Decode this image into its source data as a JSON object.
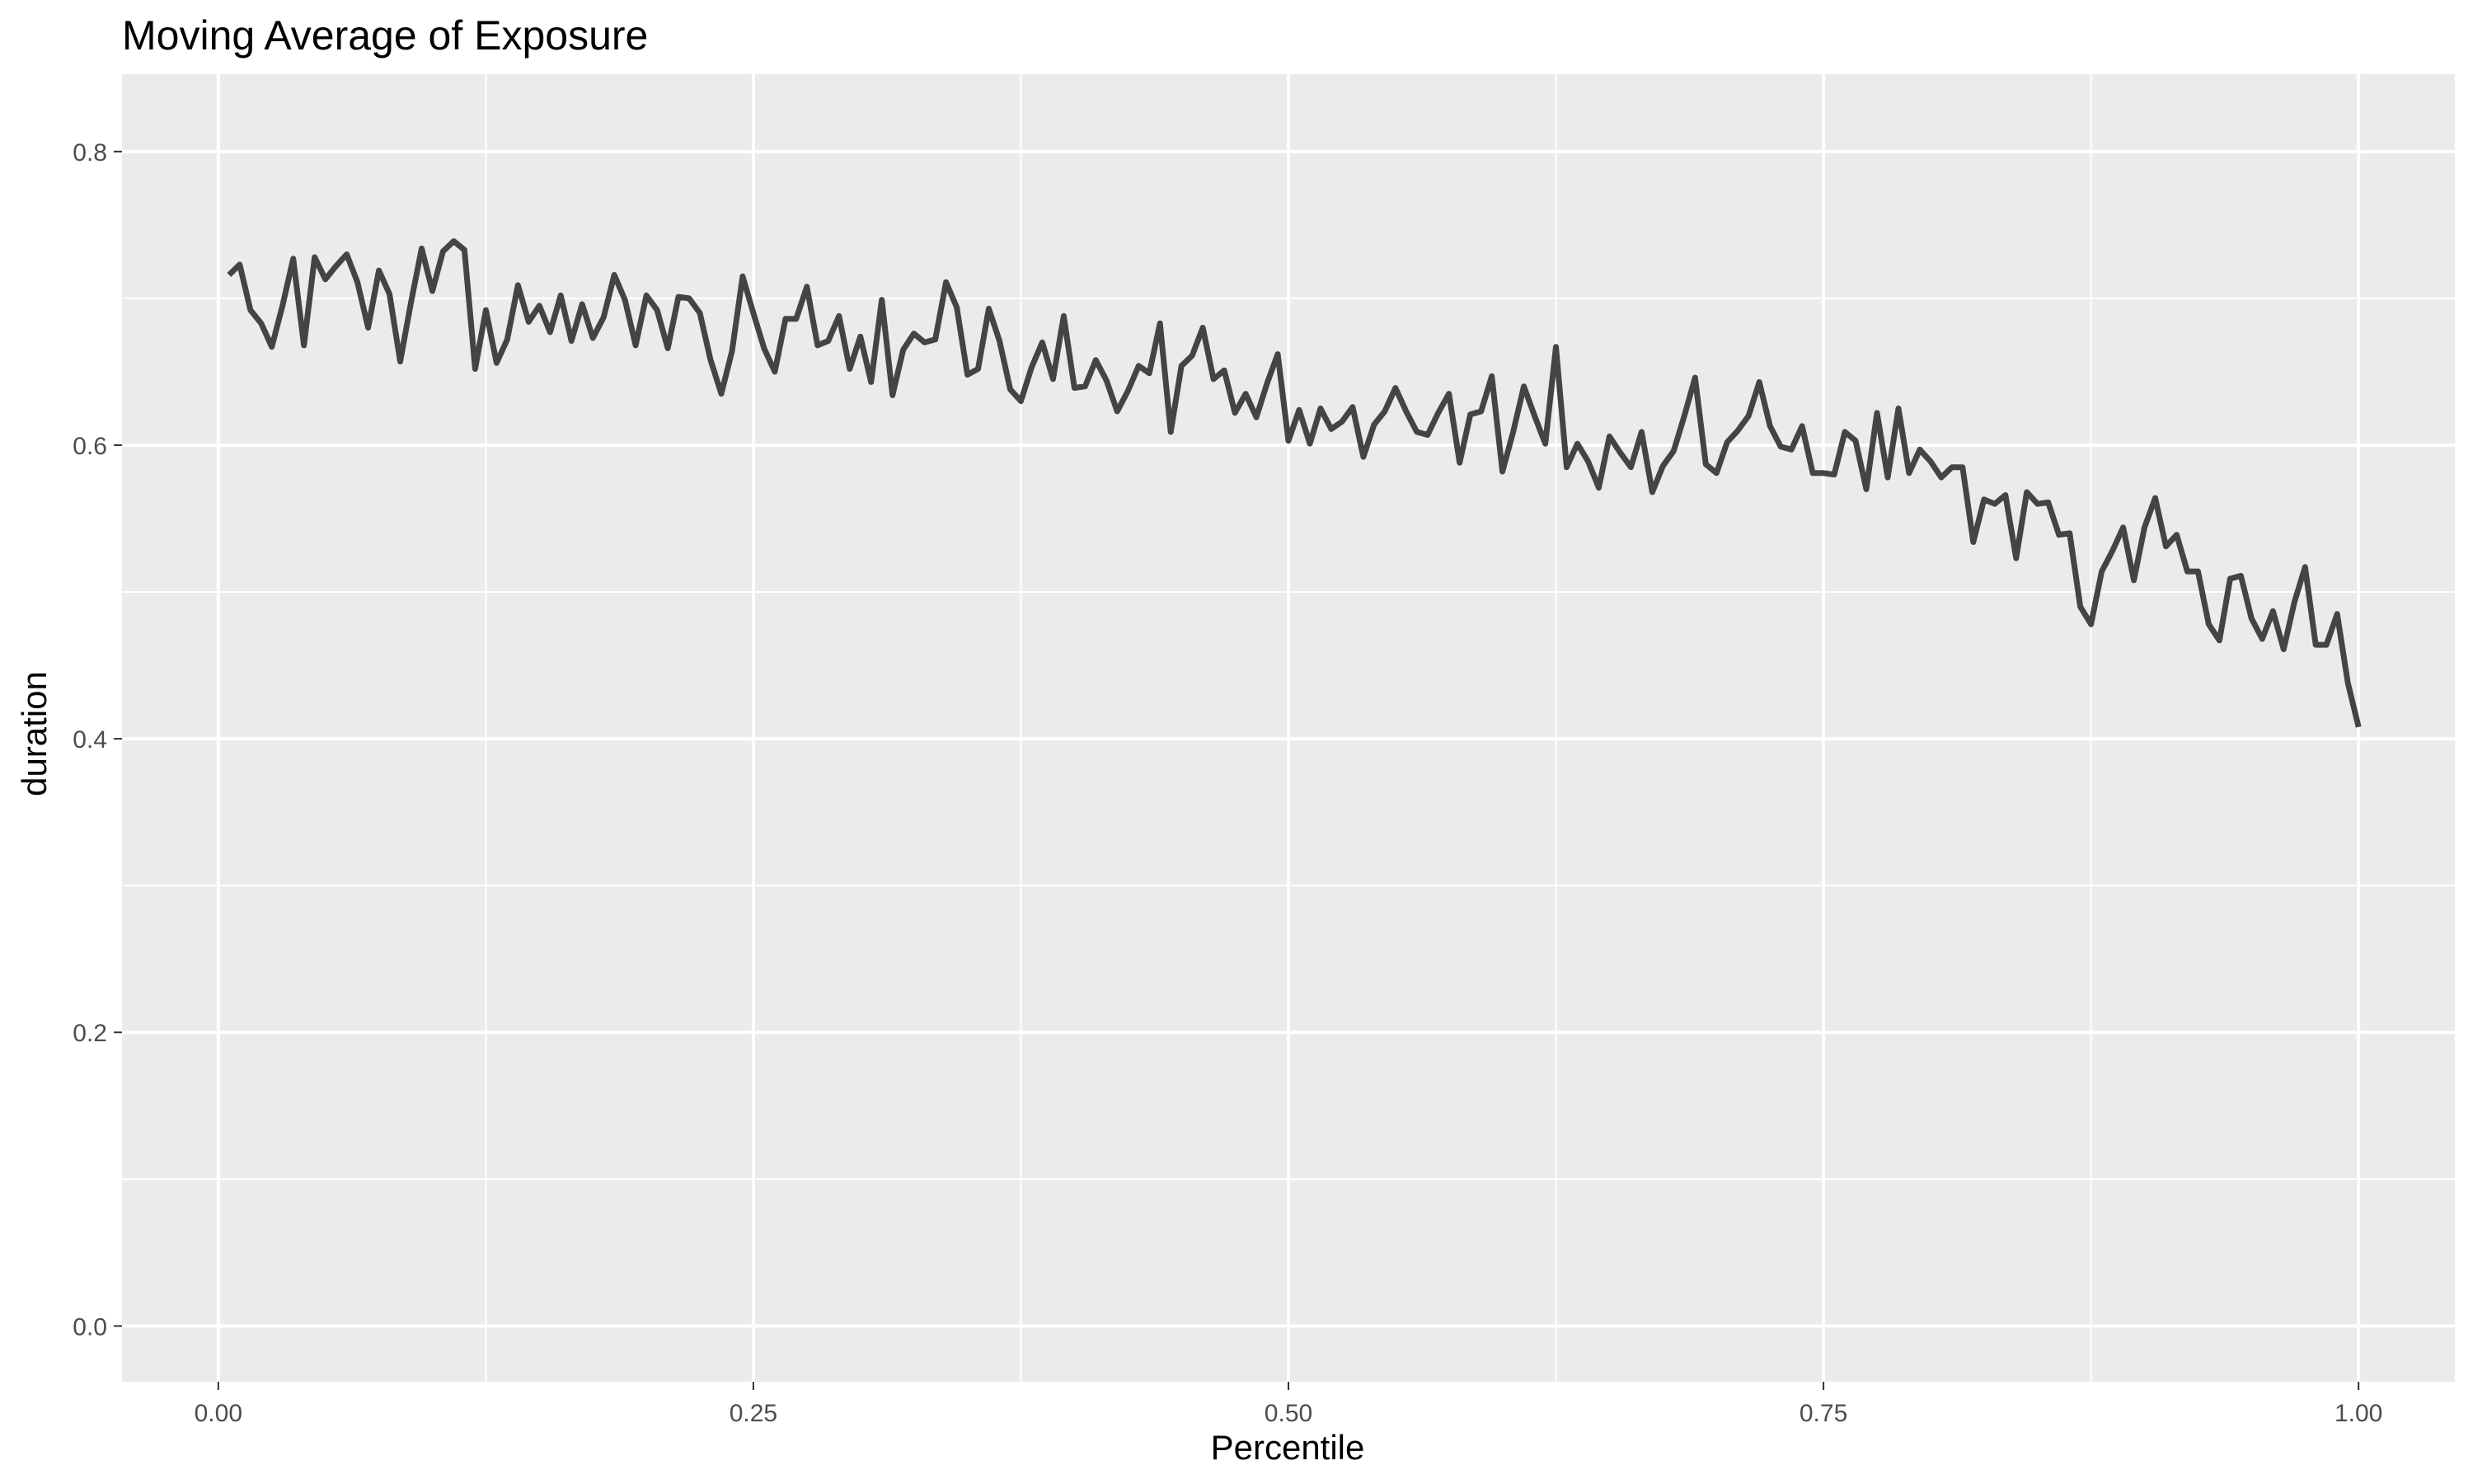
{
  "chart_data": {
    "type": "line",
    "title": "Moving Average of Exposure",
    "xlabel": "Percentile",
    "ylabel": "duration",
    "xlim": [
      -0.045,
      1.045
    ],
    "ylim": [
      -0.038,
      0.8527
    ],
    "grid": true,
    "legend": "none",
    "x_ticks": [
      {
        "value": 0.0,
        "label": "0.00"
      },
      {
        "value": 0.25,
        "label": "0.25"
      },
      {
        "value": 0.5,
        "label": "0.50"
      },
      {
        "value": 0.75,
        "label": "0.75"
      },
      {
        "value": 1.0,
        "label": "1.00"
      }
    ],
    "y_ticks": [
      {
        "value": 0.0,
        "label": "0.0"
      },
      {
        "value": 0.2,
        "label": "0.2"
      },
      {
        "value": 0.4,
        "label": "0.4"
      },
      {
        "value": 0.6,
        "label": "0.6"
      },
      {
        "value": 0.8,
        "label": "0.8"
      }
    ],
    "x_minor": [
      0.125,
      0.375,
      0.625,
      0.875
    ],
    "y_minor": [
      0.1,
      0.3,
      0.5,
      0.7
    ],
    "colors": {
      "panel": "#ebebeb",
      "grid": "#ffffff",
      "line": "#444444",
      "tick": "#333333"
    },
    "series": [
      {
        "x": [
          0.005,
          0.01,
          0.015,
          0.02,
          0.025,
          0.03,
          0.035,
          0.04,
          0.045,
          0.05,
          0.055,
          0.06,
          0.065,
          0.07,
          0.075,
          0.08,
          0.085,
          0.09,
          0.095,
          0.1,
          0.105,
          0.11,
          0.115,
          0.12,
          0.125,
          0.13,
          0.135,
          0.14,
          0.145,
          0.15,
          0.155,
          0.16,
          0.165,
          0.17,
          0.175,
          0.18,
          0.185,
          0.19,
          0.195,
          0.2,
          0.205,
          0.21,
          0.215,
          0.22,
          0.225,
          0.23,
          0.235,
          0.24,
          0.245,
          0.25,
          0.255,
          0.26,
          0.265,
          0.27,
          0.275,
          0.28,
          0.285,
          0.29,
          0.295,
          0.3,
          0.305,
          0.31,
          0.315,
          0.32,
          0.325,
          0.33,
          0.335,
          0.34,
          0.345,
          0.35,
          0.355,
          0.36,
          0.365,
          0.37,
          0.375,
          0.38,
          0.385,
          0.39,
          0.395,
          0.4,
          0.405,
          0.41,
          0.415,
          0.42,
          0.425,
          0.43,
          0.435,
          0.44,
          0.445,
          0.45,
          0.455,
          0.46,
          0.465,
          0.47,
          0.475,
          0.48,
          0.485,
          0.49,
          0.495,
          0.5,
          0.505,
          0.51,
          0.515,
          0.52,
          0.525,
          0.53,
          0.535,
          0.54,
          0.545,
          0.55,
          0.555,
          0.56,
          0.565,
          0.57,
          0.575,
          0.58,
          0.585,
          0.59,
          0.595,
          0.6,
          0.605,
          0.61,
          0.615,
          0.62,
          0.625,
          0.63,
          0.635,
          0.64,
          0.645,
          0.65,
          0.655,
          0.66,
          0.665,
          0.67,
          0.675,
          0.68,
          0.685,
          0.69,
          0.695,
          0.7,
          0.705,
          0.71,
          0.715,
          0.72,
          0.725,
          0.73,
          0.735,
          0.74,
          0.745,
          0.75,
          0.755,
          0.76,
          0.765,
          0.77,
          0.775,
          0.78,
          0.785,
          0.79,
          0.795,
          0.8,
          0.805,
          0.81,
          0.815,
          0.82,
          0.825,
          0.83,
          0.835,
          0.84,
          0.845,
          0.85,
          0.855,
          0.86,
          0.865,
          0.87,
          0.875,
          0.88,
          0.885,
          0.89,
          0.895,
          0.9,
          0.905,
          0.91,
          0.915,
          0.92,
          0.925,
          0.93,
          0.935,
          0.94,
          0.945,
          0.95,
          0.955,
          0.96,
          0.965,
          0.97,
          0.975,
          0.98,
          0.985,
          0.99,
          0.995,
          1.0
        ],
        "y": [
          0.716,
          0.723,
          0.692,
          0.683,
          0.667,
          0.695,
          0.727,
          0.668,
          0.728,
          0.713,
          0.722,
          0.73,
          0.711,
          0.68,
          0.719,
          0.703,
          0.657,
          0.697,
          0.734,
          0.705,
          0.732,
          0.739,
          0.733,
          0.652,
          0.692,
          0.656,
          0.672,
          0.709,
          0.684,
          0.695,
          0.677,
          0.702,
          0.671,
          0.696,
          0.673,
          0.687,
          0.716,
          0.699,
          0.668,
          0.702,
          0.692,
          0.666,
          0.701,
          0.7,
          0.69,
          0.658,
          0.635,
          0.664,
          0.715,
          0.69,
          0.666,
          0.65,
          0.686,
          0.686,
          0.708,
          0.668,
          0.671,
          0.688,
          0.652,
          0.674,
          0.643,
          0.699,
          0.634,
          0.665,
          0.676,
          0.67,
          0.672,
          0.711,
          0.694,
          0.648,
          0.652,
          0.693,
          0.671,
          0.638,
          0.63,
          0.653,
          0.67,
          0.645,
          0.688,
          0.639,
          0.64,
          0.658,
          0.644,
          0.623,
          0.637,
          0.654,
          0.649,
          0.683,
          0.609,
          0.654,
          0.661,
          0.68,
          0.645,
          0.651,
          0.622,
          0.635,
          0.619,
          0.642,
          0.662,
          0.603,
          0.624,
          0.601,
          0.625,
          0.611,
          0.616,
          0.626,
          0.592,
          0.614,
          0.623,
          0.639,
          0.623,
          0.609,
          0.607,
          0.622,
          0.635,
          0.588,
          0.621,
          0.623,
          0.647,
          0.582,
          0.609,
          0.64,
          0.62,
          0.601,
          0.667,
          0.585,
          0.601,
          0.589,
          0.571,
          0.606,
          0.595,
          0.585,
          0.609,
          0.568,
          0.586,
          0.596,
          0.62,
          0.646,
          0.587,
          0.581,
          0.602,
          0.61,
          0.62,
          0.643,
          0.613,
          0.599,
          0.597,
          0.613,
          0.581,
          0.581,
          0.58,
          0.609,
          0.603,
          0.57,
          0.622,
          0.578,
          0.625,
          0.581,
          0.597,
          0.589,
          0.578,
          0.585,
          0.585,
          0.534,
          0.563,
          0.56,
          0.566,
          0.523,
          0.568,
          0.56,
          0.561,
          0.539,
          0.54,
          0.49,
          0.478,
          0.514,
          0.528,
          0.544,
          0.508,
          0.544,
          0.564,
          0.531,
          0.539,
          0.514,
          0.514,
          0.478,
          0.467,
          0.509,
          0.511,
          0.482,
          0.468,
          0.487,
          0.461,
          0.493,
          0.517,
          0.464,
          0.464,
          0.485,
          0.438,
          0.408
        ]
      }
    ]
  }
}
